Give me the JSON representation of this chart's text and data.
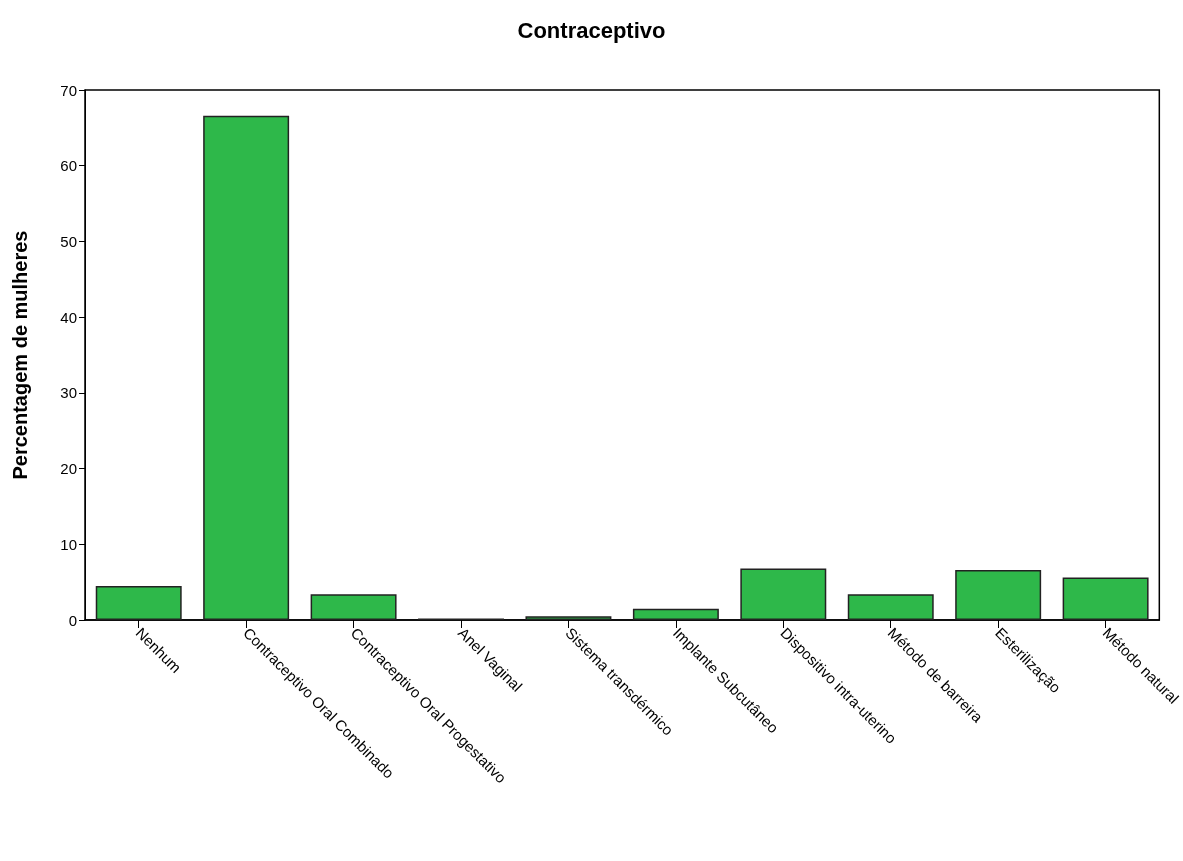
{
  "chart_data": {
    "type": "bar",
    "title": "Contraceptivo",
    "ylabel": "Percentagem de mulheres",
    "categories": [
      "Nenhum",
      "Contraceptivo Oral Combinado",
      "Contraceptivo Oral Progestativo",
      "Anel Vaginal",
      "Sistema transdérmico",
      "Implante Subcutâneo",
      "Dispositivo intra-uterino",
      "Método de barreira",
      "Esterilização",
      "Método natural"
    ],
    "values": [
      4.5,
      66.6,
      3.4,
      0.2,
      0.5,
      1.5,
      6.8,
      3.4,
      6.6,
      5.6
    ],
    "color": "#2eb84a",
    "ylim": [
      0,
      70
    ],
    "yticks": [
      0,
      10,
      20,
      30,
      40,
      50,
      60,
      70
    ]
  }
}
